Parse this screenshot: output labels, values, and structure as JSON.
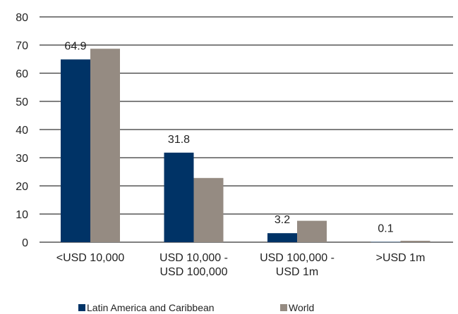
{
  "chart_data": {
    "type": "bar",
    "title": "",
    "xlabel": "",
    "ylabel": "",
    "ylim": [
      0,
      80
    ],
    "yticks": [
      0,
      10,
      20,
      30,
      40,
      50,
      60,
      70,
      80
    ],
    "grid": true,
    "legend_position": "bottom",
    "categories": [
      [
        "<USD 10,000"
      ],
      [
        "USD 10,000 -",
        "USD 100,000"
      ],
      [
        "USD 100,000 -",
        "USD 1m"
      ],
      [
        ">USD 1m"
      ]
    ],
    "series": [
      {
        "name": "Latin America and Caribbean",
        "color": "#003366",
        "values": [
          64.9,
          31.8,
          3.2,
          0.1
        ]
      },
      {
        "name": "World",
        "color": "#958b82",
        "values": [
          68.7,
          22.8,
          7.6,
          0.5
        ]
      }
    ],
    "data_labels": [
      "64.9",
      "31.8",
      "3.2",
      "0.1"
    ]
  }
}
